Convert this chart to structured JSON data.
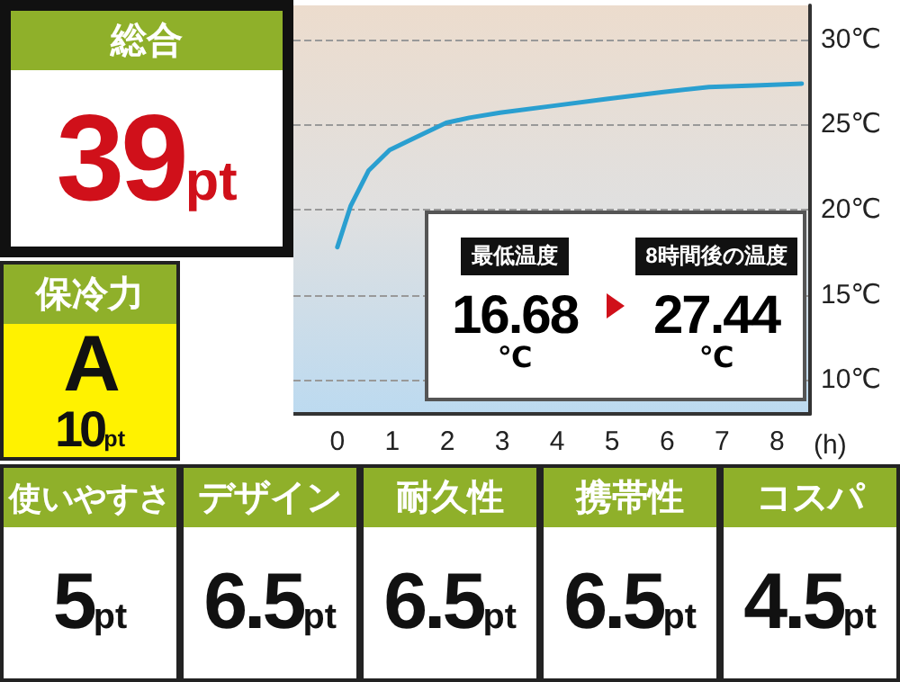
{
  "chart_data": [
    {
      "type": "other",
      "title": "総合",
      "annotations": [
        "39pt"
      ],
      "color": "#d0101a"
    },
    {
      "type": "line",
      "xlabel": "(h)",
      "xlim": [
        -0.8,
        8.6
      ],
      "ylim": [
        8,
        32
      ],
      "xticks": [
        0,
        1,
        2,
        3,
        4,
        5,
        6,
        7,
        8
      ],
      "yticks": [
        {
          "value": 10,
          "label": "10℃"
        },
        {
          "value": 15,
          "label": "15℃"
        },
        {
          "value": 20,
          "label": "20℃"
        },
        {
          "value": 25,
          "label": "25℃"
        },
        {
          "value": 30,
          "label": "30℃"
        }
      ],
      "grid": "y",
      "marker": "none",
      "line_style": "solid",
      "series": [
        {
          "color": "#2a9fd0",
          "x": [
            0,
            0.24,
            0.57,
            0.95,
            1.33,
            1.98,
            2.4,
            2.96,
            3.93,
            4.9,
            5.9,
            6.76,
            7.6,
            8.45
          ],
          "values": [
            17.8,
            20.2,
            22.3,
            23.5,
            24.1,
            25.1,
            25.4,
            25.7,
            26.1,
            26.5,
            26.9,
            27.2,
            27.3,
            27.4
          ]
        }
      ],
      "annotations": [
        "最低温度",
        "16.68℃",
        "8時間後の温度",
        "27.44℃"
      ]
    },
    {
      "type": "other",
      "title": "保冷力",
      "annotations": [
        "A",
        "10pt"
      ]
    },
    {
      "type": "other",
      "title": "使いやすさ",
      "annotations": [
        "5pt"
      ]
    },
    {
      "type": "other",
      "title": "デザイン",
      "annotations": [
        "6.5pt"
      ]
    },
    {
      "type": "other",
      "title": "耐久性",
      "annotations": [
        "6.5pt"
      ]
    },
    {
      "type": "other",
      "title": "携帯性",
      "annotations": [
        "6.5pt"
      ]
    },
    {
      "type": "other",
      "title": "コスパ",
      "annotations": [
        "4.5pt"
      ]
    }
  ]
}
